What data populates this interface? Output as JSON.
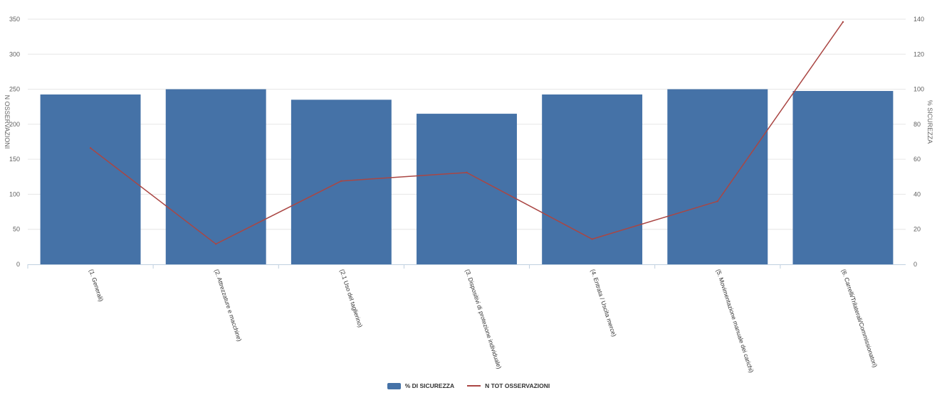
{
  "chart_data": {
    "type": "bar",
    "categories": [
      "(1. Generali)",
      "(2. Attrezzature e macchine)",
      "(2.1 Uso del taglierino)",
      "(3. Dispositivi di protezione individuale)",
      "(4. Entrata / Uscita merce)",
      "(5. Movimentazione manuale dei carichi)",
      "(6. Carrelli/Trilaterali/Commissionatori)"
    ],
    "series": [
      {
        "name": "% DI SICUREZZA",
        "type": "bar",
        "axis": "right",
        "color": "#4572a7",
        "values": [
          97,
          100,
          94,
          86,
          97,
          100,
          99
        ]
      },
      {
        "name": "N TOT OSSERVAZIONI",
        "type": "line",
        "axis": "left",
        "color": "#aa4643",
        "values": [
          166,
          29,
          119,
          131,
          36,
          90,
          346
        ]
      }
    ],
    "y_left": {
      "label": "N OSSERVAZIONI",
      "range": [
        0,
        350
      ],
      "ticks": [
        "0",
        "50",
        "100",
        "150",
        "200",
        "250",
        "300",
        "350"
      ]
    },
    "y_right": {
      "label": "% SICUREZZA",
      "range": [
        0,
        140
      ],
      "ticks": [
        "0",
        "20",
        "40",
        "60",
        "80",
        "100",
        "120",
        "140"
      ]
    },
    "grid": true,
    "legend_position": "bottom-center"
  }
}
